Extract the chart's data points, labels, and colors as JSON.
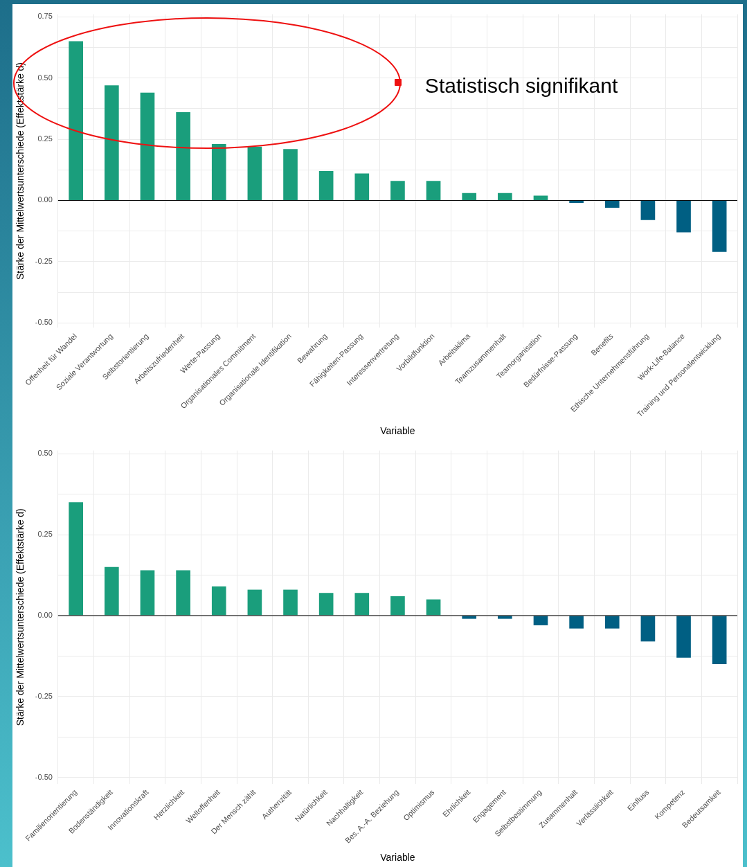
{
  "chart_data": [
    {
      "type": "bar",
      "xlabel": "Variable",
      "ylabel": "Stärke der Mittelwertsunterschiede (Effektstärke d)",
      "annotations": [
        "Statistisch signifikant"
      ],
      "categories": [
        "Offenheit für Wandel",
        "Soziale Verantwortung",
        "Selbstorientierung",
        "Arbeitszufriedenheit",
        "Werte-Passung",
        "Organisationales Commitment",
        "Organisationale Identifikation",
        "Bewahrung",
        "Fähigkeiten-Passung",
        "Interessenvertretung",
        "Vorbildfunktion",
        "Arbeitsklima",
        "Teamzusammenhalt",
        "Teamorganisation",
        "Bedürfnisse-Passung",
        "Benefits",
        "Ethische Unternehmensführung",
        "Work-Life-Balance",
        "Training und Personalentwicklung"
      ],
      "values": [
        0.65,
        0.47,
        0.44,
        0.36,
        0.23,
        0.22,
        0.21,
        0.12,
        0.11,
        0.08,
        0.08,
        0.03,
        0.03,
        0.02,
        -0.01,
        -0.03,
        -0.08,
        -0.13,
        -0.21
      ],
      "colors": [
        "#1a9e7c",
        "#1a9e7c",
        "#1a9e7c",
        "#1a9e7c",
        "#1a9e7c",
        "#1a9e7c",
        "#1a9e7c",
        "#1a9e7c",
        "#1a9e7c",
        "#1a9e7c",
        "#1a9e7c",
        "#1a9e7c",
        "#1a9e7c",
        "#1a9e7c",
        "#005f83",
        "#005f83",
        "#005f83",
        "#005f83",
        "#005f83"
      ],
      "ylim": [
        -0.52,
        0.76
      ],
      "yticks": [
        {
          "value": -0.5,
          "label": "-0.50"
        },
        {
          "value": -0.375,
          "label": null
        },
        {
          "value": -0.25,
          "label": "-0.25"
        },
        {
          "value": -0.125,
          "label": null
        },
        {
          "value": 0,
          "label": "0.00"
        },
        {
          "value": 0.125,
          "label": null
        },
        {
          "value": 0.25,
          "label": "0.25"
        },
        {
          "value": 0.375,
          "label": null
        },
        {
          "value": 0.5,
          "label": "0.50"
        },
        {
          "value": 0.625,
          "label": null
        },
        {
          "value": 0.75,
          "label": "0.75"
        }
      ],
      "ref_lines": [
        {
          "axis": "y",
          "value": 0,
          "color": "#000000"
        }
      ],
      "grid": true,
      "legend": false
    },
    {
      "type": "bar",
      "xlabel": "Variable",
      "ylabel": "Stärke der Mittelwertsunterschiede (Effektstärke d)",
      "categories": [
        "Familienorientierung",
        "Bodenständigkeit",
        "Innovationskraft",
        "Herzlichkeit",
        "Weltoffenheit",
        "Der Mensch zählt",
        "Authenzität",
        "Natürlichkeit",
        "Nachhaltigkeit",
        "Bes. A.-A. Beziehung",
        "Optimismus",
        "Ehrlichkeit",
        "Engagement",
        "Selbstbestimmung",
        "Zusammenhalt",
        "Verlässlichkeit",
        "Einfluss",
        "Kompetenz",
        "Bedeutsamkeit"
      ],
      "values": [
        0.35,
        0.15,
        0.14,
        0.14,
        0.09,
        0.08,
        0.08,
        0.07,
        0.07,
        0.06,
        0.05,
        -0.01,
        -0.01,
        -0.03,
        -0.04,
        -0.04,
        -0.08,
        -0.13,
        -0.15
      ],
      "colors": [
        "#1a9e7c",
        "#1a9e7c",
        "#1a9e7c",
        "#1a9e7c",
        "#1a9e7c",
        "#1a9e7c",
        "#1a9e7c",
        "#1a9e7c",
        "#1a9e7c",
        "#1a9e7c",
        "#1a9e7c",
        "#005f83",
        "#005f83",
        "#005f83",
        "#005f83",
        "#005f83",
        "#005f83",
        "#005f83",
        "#005f83"
      ],
      "ylim": [
        -0.52,
        0.51
      ],
      "yticks": [
        {
          "value": -0.5,
          "label": "-0.50"
        },
        {
          "value": -0.375,
          "label": null
        },
        {
          "value": -0.25,
          "label": "-0.25"
        },
        {
          "value": -0.125,
          "label": null
        },
        {
          "value": 0,
          "label": "0.00"
        },
        {
          "value": 0.125,
          "label": null
        },
        {
          "value": 0.25,
          "label": "0.25"
        },
        {
          "value": 0.375,
          "label": null
        },
        {
          "value": 0.5,
          "label": "0.50"
        }
      ],
      "ref_lines": [
        {
          "axis": "y",
          "value": 0,
          "color": "#000000"
        }
      ],
      "grid": true,
      "legend": false
    }
  ]
}
